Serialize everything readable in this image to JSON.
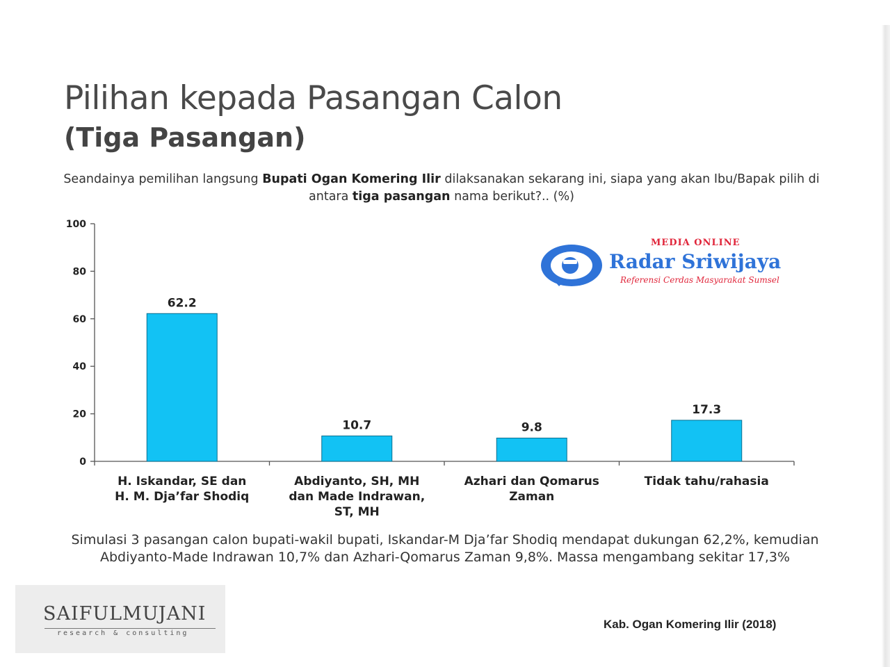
{
  "title": "Pilihan kepada Pasangan Calon",
  "subtitle": "(Tiga Pasangan)",
  "question": {
    "part1": "Seandainya pemilihan langsung ",
    "bold1": "Bupati Ogan Komering Ilir",
    "part2": " dilaksanakan sekarang ini, siapa yang akan Ibu/Bapak pilih di antara ",
    "bold2": "tiga pasangan",
    "part3": " nama berikut?.. (%)"
  },
  "chart_data": {
    "type": "bar",
    "categories": [
      [
        "H. Iskandar, SE dan",
        "H. M. Dja’far Shodiq"
      ],
      [
        "Abdiyanto, SH, MH",
        "dan Made Indrawan,",
        "ST, MH"
      ],
      [
        "Azhari dan Qomarus",
        "Zaman"
      ],
      [
        "Tidak tahu/rahasia"
      ]
    ],
    "values": [
      62.2,
      10.7,
      9.8,
      17.3
    ],
    "value_labels": [
      "62.2",
      "10.7",
      "9.8",
      "17.3"
    ],
    "yticks": [
      0,
      20,
      40,
      60,
      80,
      100
    ],
    "ylim": [
      0,
      100
    ],
    "bar_color": "#12c2f4",
    "grid": false
  },
  "summary": "Simulasi 3 pasangan calon bupati-wakil bupati, Iskandar-M Dja’far Shodiq mendapat dukungan 62,2%, kemudian Abdiyanto-Made Indrawan 10,7% dan Azhari-Qomarus Zaman 9,8%. Massa mengambang sekitar 17,3%",
  "logo": {
    "name": "SAIFULMUJANI",
    "tagline": "research & consulting"
  },
  "source": "Kab. Ogan Komering Ilir (2018)",
  "watermark": {
    "top": "MEDIA ONLINE",
    "name": "Radar Sriwijaya",
    "tagline": "Referensi Cerdas Masyarakat Sumsel",
    "colors": {
      "blue": "#2f73d8",
      "red": "#e0253a"
    }
  }
}
